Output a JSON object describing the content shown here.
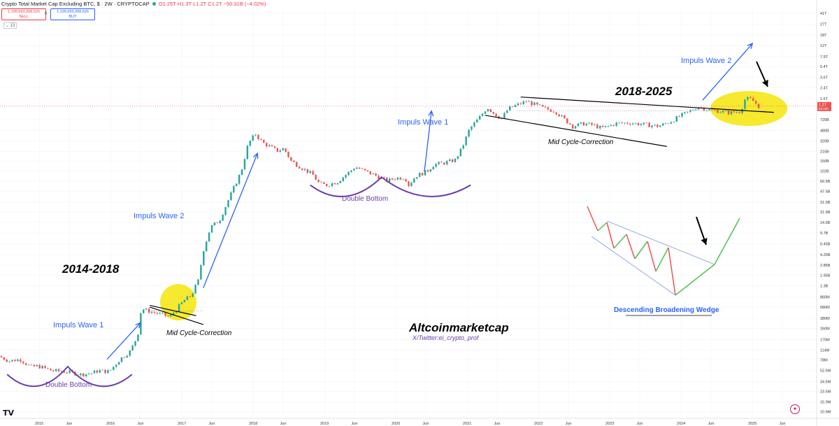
{
  "header": {
    "symbol_title": "Crypto Total Market Cap Excluding BTC, $ · 2W · CRYPTOCAP",
    "ohlc": "O1.25T H1.3T L1.2T C1.2T −50.31B (−4.02%)"
  },
  "trade": {
    "sell_price": "1,199,693,308,526",
    "sell_label": "SELL",
    "spread": "0",
    "buy_price": "1,199,693,308,526",
    "buy_label": "BUY"
  },
  "volume_badge": "13",
  "colors": {
    "up": "#26a69a",
    "down": "#ef5350",
    "arrow": "#2962ff",
    "purple": "#6a3ea8",
    "highlight": "#f5e50a"
  },
  "chart_data": {
    "type": "candlestick",
    "log_scale": true,
    "y_ticks": [
      {
        "label": "41T",
        "value": 41000
      },
      {
        "label": "27T",
        "value": 27000
      },
      {
        "label": "18T",
        "value": 18000
      },
      {
        "label": "12T",
        "value": 12000
      },
      {
        "label": "7.9T",
        "value": 7900
      },
      {
        "label": "5.4T",
        "value": 5400
      },
      {
        "label": "3.6T",
        "value": 3600
      },
      {
        "label": "2.4T",
        "value": 2400
      },
      {
        "label": "1.6T",
        "value": 1600
      },
      {
        "label": "720B",
        "value": 720
      },
      {
        "label": "480B",
        "value": 480
      },
      {
        "label": "320B",
        "value": 320
      },
      {
        "label": "215B",
        "value": 215
      },
      {
        "label": "150B",
        "value": 150
      },
      {
        "label": "102B",
        "value": 102
      },
      {
        "label": "69.5B",
        "value": 69.5
      },
      {
        "label": "47.5B",
        "value": 47.5
      },
      {
        "label": "31.5B",
        "value": 31.5
      },
      {
        "label": "21.5B",
        "value": 21.5
      },
      {
        "label": "14.5B",
        "value": 14.5
      },
      {
        "label": "9.7B",
        "value": 9.7
      },
      {
        "label": "6.45B",
        "value": 6.45
      },
      {
        "label": "4.25B",
        "value": 4.25
      },
      {
        "label": "2.85B",
        "value": 2.85
      },
      {
        "label": "1.95B",
        "value": 1.95
      },
      {
        "label": "1.3B",
        "value": 1.3
      },
      {
        "label": "860M",
        "value": 0.86
      },
      {
        "label": "580M",
        "value": 0.58
      },
      {
        "label": "380M",
        "value": 0.38
      },
      {
        "label": "260M",
        "value": 0.26
      },
      {
        "label": "170M",
        "value": 0.17
      },
      {
        "label": "114M",
        "value": 0.114
      },
      {
        "label": "78M",
        "value": 0.078
      },
      {
        "label": "52.5M",
        "value": 0.0525
      },
      {
        "label": "34.5M",
        "value": 0.0345
      },
      {
        "label": "23.5M",
        "value": 0.0235
      },
      {
        "label": "15.9M",
        "value": 0.0159
      },
      {
        "label": "10.9M",
        "value": 0.0109
      }
    ],
    "y_unit_note": "values in billions USD",
    "ylim": [
      0.0085,
      52000
    ],
    "price_label": {
      "label": "1.2T",
      "sub": "6d 10h",
      "value": 1200
    },
    "x_ticks": [
      {
        "label": "2015",
        "t": 2015.0
      },
      {
        "label": "Jun",
        "t": 2015.42
      },
      {
        "label": "2016",
        "t": 2016.0
      },
      {
        "label": "Jun",
        "t": 2016.42
      },
      {
        "label": "2017",
        "t": 2017.0
      },
      {
        "label": "Jun",
        "t": 2017.42
      },
      {
        "label": "2018",
        "t": 2018.0
      },
      {
        "label": "Jun",
        "t": 2018.42
      },
      {
        "label": "2019",
        "t": 2019.0
      },
      {
        "label": "Jun",
        "t": 2019.42
      },
      {
        "label": "2020",
        "t": 2020.0
      },
      {
        "label": "Jun",
        "t": 2020.42
      },
      {
        "label": "2021",
        "t": 2021.0
      },
      {
        "label": "Jun",
        "t": 2021.42
      },
      {
        "label": "2022",
        "t": 2022.0
      },
      {
        "label": "Jun",
        "t": 2022.42
      },
      {
        "label": "2023",
        "t": 2023.0
      },
      {
        "label": "Jun",
        "t": 2023.42
      },
      {
        "label": "2024",
        "t": 2024.0
      },
      {
        "label": "Jun",
        "t": 2024.42
      },
      {
        "label": "2025",
        "t": 2025.0
      },
      {
        "label": "Jun",
        "t": 2025.42
      }
    ],
    "xlim": [
      2014.45,
      2025.9
    ],
    "price_path": [
      [
        2014.45,
        0.09
      ],
      [
        2014.6,
        0.075
      ],
      [
        2014.75,
        0.08
      ],
      [
        2014.9,
        0.06
      ],
      [
        2015.0,
        0.062
      ],
      [
        2015.2,
        0.052
      ],
      [
        2015.4,
        0.05
      ],
      [
        2015.6,
        0.045
      ],
      [
        2015.75,
        0.047
      ],
      [
        2015.85,
        0.052
      ],
      [
        2016.0,
        0.05
      ],
      [
        2016.15,
        0.08
      ],
      [
        2016.3,
        0.11
      ],
      [
        2016.4,
        0.2
      ],
      [
        2016.45,
        0.55
      ],
      [
        2016.55,
        0.5
      ],
      [
        2016.7,
        0.45
      ],
      [
        2016.85,
        0.4
      ],
      [
        2016.95,
        0.55
      ],
      [
        2017.05,
        0.75
      ],
      [
        2017.15,
        0.9
      ],
      [
        2017.25,
        1.6
      ],
      [
        2017.32,
        5.0
      ],
      [
        2017.42,
        12.0
      ],
      [
        2017.55,
        16.0
      ],
      [
        2017.65,
        30.0
      ],
      [
        2017.75,
        55.0
      ],
      [
        2017.85,
        100.0
      ],
      [
        2017.95,
        290.0
      ],
      [
        2018.05,
        420.0
      ],
      [
        2018.15,
        300.0
      ],
      [
        2018.25,
        260.0
      ],
      [
        2018.35,
        220.0
      ],
      [
        2018.45,
        240.0
      ],
      [
        2018.55,
        150.0
      ],
      [
        2018.7,
        115.0
      ],
      [
        2018.85,
        90.0
      ],
      [
        2018.95,
        62.0
      ],
      [
        2019.05,
        60.0
      ],
      [
        2019.2,
        68.0
      ],
      [
        2019.35,
        95.0
      ],
      [
        2019.45,
        120.0
      ],
      [
        2019.6,
        100.0
      ],
      [
        2019.75,
        85.0
      ],
      [
        2019.9,
        70.0
      ],
      [
        2020.0,
        78.0
      ],
      [
        2020.15,
        80.0
      ],
      [
        2020.2,
        60.0
      ],
      [
        2020.3,
        85.0
      ],
      [
        2020.45,
        100.0
      ],
      [
        2020.55,
        130.0
      ],
      [
        2020.7,
        140.0
      ],
      [
        2020.85,
        155.0
      ],
      [
        2020.95,
        250.0
      ],
      [
        2021.05,
        500.0
      ],
      [
        2021.2,
        800.0
      ],
      [
        2021.3,
        1150.0
      ],
      [
        2021.4,
        900.0
      ],
      [
        2021.5,
        750.0
      ],
      [
        2021.6,
        1100.0
      ],
      [
        2021.75,
        1300.0
      ],
      [
        2021.85,
        1450.0
      ],
      [
        2021.95,
        1300.0
      ],
      [
        2022.1,
        1100.0
      ],
      [
        2022.25,
        1000.0
      ],
      [
        2022.4,
        700.0
      ],
      [
        2022.5,
        560.0
      ],
      [
        2022.65,
        620.0
      ],
      [
        2022.8,
        580.0
      ],
      [
        2022.9,
        520.0
      ],
      [
        2023.0,
        560.0
      ],
      [
        2023.1,
        620.0
      ],
      [
        2023.3,
        640.0
      ],
      [
        2023.5,
        600.0
      ],
      [
        2023.7,
        560.0
      ],
      [
        2023.85,
        650.0
      ],
      [
        2024.0,
        820.0
      ],
      [
        2024.15,
        1000.0
      ],
      [
        2024.25,
        1180.0
      ],
      [
        2024.4,
        1050.0
      ],
      [
        2024.55,
        1000.0
      ],
      [
        2024.7,
        940.0
      ],
      [
        2024.85,
        980.0
      ],
      [
        2024.92,
        1600.0
      ],
      [
        2025.0,
        1550.0
      ],
      [
        2025.05,
        1400.0
      ],
      [
        2025.1,
        1200.0
      ]
    ],
    "annotations": {
      "title_left": "2014-2018",
      "title_right": "2018-2025",
      "wave1_left": "Impuls Wave 1",
      "wave2_left": "Impuls Wave 2",
      "wave1_right": "Impuls Wave 1",
      "wave2_right": "Impuls Wave 2",
      "mid_left": "Mid Cycle-Correction",
      "mid_right": "Mid Cycle-Correction",
      "db_left": "Double Bottom",
      "db_right": "Double Bottom",
      "brand": "Altcoinmarketcap",
      "handle": "X/Twitter:el_crypto_prof",
      "wedge_caption": "Descending Broadening Wedge"
    }
  }
}
